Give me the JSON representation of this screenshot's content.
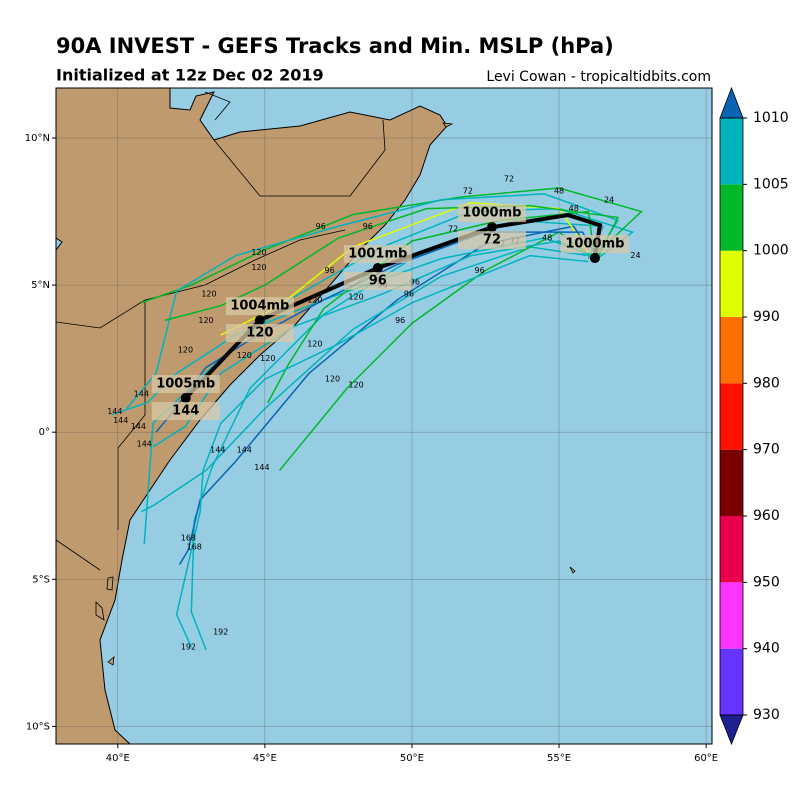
{
  "header": {
    "title": "90A INVEST - GEFS Tracks and Min. MSLP (hPa)",
    "subtitle": "Initialized at 12z Dec 02 2019",
    "credit": "Levi Cowan - tropicaltidbits.com"
  },
  "map": {
    "xlim": [
      37.9,
      60.2
    ],
    "ylim": [
      -10.6,
      11.7
    ],
    "xticks": [
      {
        "value": 40,
        "label": "40°E"
      },
      {
        "value": 45,
        "label": "45°E"
      },
      {
        "value": 50,
        "label": "50°E"
      },
      {
        "value": 55,
        "label": "55°E"
      },
      {
        "value": 60,
        "label": "60°E"
      }
    ],
    "yticks": [
      {
        "value": 10,
        "label": "10°N"
      },
      {
        "value": 5,
        "label": "5°N"
      },
      {
        "value": 0,
        "label": "0°"
      },
      {
        "value": -5,
        "label": "5°S"
      },
      {
        "value": -10,
        "label": "10°S"
      }
    ],
    "members": [
      {
        "color": "#00b4be",
        "lon": [
          56.3,
          57.5,
          55,
          52,
          49,
          46,
          43.5,
          41.2,
          40.9
        ],
        "lat": [
          5.9,
          6.8,
          7.6,
          7.5,
          6.3,
          4.6,
          2.5,
          0.3,
          -3.8
        ]
      },
      {
        "color": "#00b828",
        "lon": [
          56.2,
          57.8,
          55,
          51.7,
          48,
          45,
          42.5,
          40.8
        ],
        "lat": [
          6.0,
          7.5,
          8.3,
          8.0,
          7.4,
          6.2,
          5.0,
          4.4
        ]
      },
      {
        "color": "#00b4be",
        "lon": [
          56.2,
          57,
          54.5,
          51,
          47.5,
          44,
          42,
          41.3,
          40.3
        ],
        "lat": [
          5.9,
          7.2,
          8.1,
          7.9,
          7.0,
          6.0,
          4.8,
          2.0,
          0.8
        ]
      },
      {
        "color": "#00b4be",
        "lon": [
          56,
          56.5,
          53.5,
          50,
          47,
          44.5,
          43.2,
          42.6,
          42.5,
          43.0
        ],
        "lat": [
          5.9,
          7.0,
          7.2,
          5.9,
          4.0,
          1.5,
          -1.2,
          -3,
          -6.1,
          -7.4
        ]
      },
      {
        "color": "#0a64b4",
        "lon": [
          56.1,
          55.5,
          52.5,
          49.5,
          46.5,
          44,
          42.8,
          42.4,
          42.1
        ],
        "lat": [
          6,
          7.0,
          6.4,
          4.5,
          2.0,
          -1,
          -2.3,
          -4,
          -4.5
        ]
      },
      {
        "color": "#00b4be",
        "lon": [
          56,
          54,
          51,
          48,
          45,
          43,
          41.2,
          40.8
        ],
        "lat": [
          6,
          6.3,
          5.3,
          3.5,
          0.8,
          -1.3,
          -2.5,
          -2.7
        ]
      },
      {
        "color": "#00b828",
        "lon": [
          56.2,
          55,
          52.5,
          50,
          47.8,
          45.5
        ],
        "lat": [
          5.9,
          6.8,
          5.5,
          3.7,
          1.5,
          -1.3
        ]
      },
      {
        "color": "#e0ff00",
        "lon": [
          56.1,
          55,
          52,
          48,
          45.5,
          43.5
        ],
        "lat": [
          6,
          7.6,
          7.8,
          6.3,
          4.3,
          3.3
        ]
      },
      {
        "color": "#00b4be",
        "lon": [
          56.2,
          54.5,
          51,
          47,
          44,
          42,
          41,
          39.8
        ],
        "lat": [
          6,
          6.6,
          5.9,
          4.5,
          3.3,
          2.0,
          1.0,
          0.6
        ]
      },
      {
        "color": "#00b828",
        "lon": [
          56.2,
          56,
          53,
          50,
          47,
          45.8,
          45.1
        ],
        "lat": [
          6,
          7.5,
          7.2,
          6.5,
          4.2,
          2.3,
          1.0
        ]
      },
      {
        "color": "#0a64b4",
        "lon": [
          56.3,
          55.8,
          52.5,
          49.5,
          47,
          44.6,
          43,
          41.8,
          41.3
        ],
        "lat": [
          5.9,
          6.8,
          6.8,
          5.7,
          4.5,
          3.2,
          2.2,
          0.6,
          0.0
        ]
      },
      {
        "color": "#00b4be",
        "lon": [
          56.2,
          55,
          52,
          49,
          46,
          43.5,
          42.3,
          41.2
        ],
        "lat": [
          5.9,
          6.5,
          6.0,
          4.7,
          3.6,
          2.0,
          0.2,
          -0.5
        ]
      },
      {
        "color": "#00b828",
        "lon": [
          56.3,
          57,
          54,
          50.5,
          47.5,
          45,
          43.5,
          41.6
        ],
        "lat": [
          5.9,
          7.3,
          7.7,
          7.6,
          6.6,
          5.0,
          4.3,
          3.8
        ]
      },
      {
        "color": "#00b4be",
        "lon": [
          56,
          54,
          50,
          47.5,
          45,
          43.5,
          42.9,
          42.8,
          42,
          42.5
        ],
        "lat": [
          5.8,
          6.0,
          4.4,
          3.0,
          1.8,
          0.3,
          -1.3,
          -2.7,
          -6.2,
          -7.3
        ]
      }
    ],
    "hour_labels": [
      {
        "text": "24",
        "lon": 57.6,
        "lat": 6.0
      },
      {
        "text": "24",
        "lon": 56.7,
        "lat": 7.9
      },
      {
        "text": "48",
        "lon": 55,
        "lat": 8.2
      },
      {
        "text": "48",
        "lon": 55.5,
        "lat": 7.6
      },
      {
        "text": "48",
        "lon": 54.6,
        "lat": 6.6
      },
      {
        "text": "72",
        "lon": 51.9,
        "lat": 8.2
      },
      {
        "text": "72",
        "lon": 53.3,
        "lat": 8.6
      },
      {
        "text": "72",
        "lon": 51.4,
        "lat": 6.9
      },
      {
        "text": "72",
        "lon": 53,
        "lat": 6.4
      },
      {
        "text": "72",
        "lon": 53.5,
        "lat": 6.5
      },
      {
        "text": "96",
        "lon": 46.9,
        "lat": 7.0
      },
      {
        "text": "96",
        "lon": 47.2,
        "lat": 5.5
      },
      {
        "text": "96",
        "lon": 48.5,
        "lat": 7.0
      },
      {
        "text": "96",
        "lon": 49,
        "lat": 5.0
      },
      {
        "text": "96",
        "lon": 49.9,
        "lat": 4.7
      },
      {
        "text": "96",
        "lon": 50.1,
        "lat": 5.1
      },
      {
        "text": "96",
        "lon": 52.3,
        "lat": 5.5
      },
      {
        "text": "96",
        "lon": 49.6,
        "lat": 3.8
      },
      {
        "text": "120",
        "lon": 44.8,
        "lat": 6.1
      },
      {
        "text": "120",
        "lon": 44.8,
        "lat": 5.6
      },
      {
        "text": "120",
        "lon": 43.1,
        "lat": 4.7
      },
      {
        "text": "120",
        "lon": 43,
        "lat": 3.8
      },
      {
        "text": "120",
        "lon": 46.7,
        "lat": 4.5
      },
      {
        "text": "120",
        "lon": 48.1,
        "lat": 4.6
      },
      {
        "text": "120",
        "lon": 46.7,
        "lat": 3.0
      },
      {
        "text": "120",
        "lon": 45.1,
        "lat": 2.5
      },
      {
        "text": "120",
        "lon": 44.3,
        "lat": 2.6
      },
      {
        "text": "120",
        "lon": 42.3,
        "lat": 2.8
      },
      {
        "text": "120",
        "lon": 47.3,
        "lat": 1.8
      },
      {
        "text": "120",
        "lon": 48.1,
        "lat": 1.6
      },
      {
        "text": "144",
        "lon": 40.8,
        "lat": 1.3
      },
      {
        "text": "144",
        "lon": 39.9,
        "lat": 0.7
      },
      {
        "text": "144",
        "lon": 40.1,
        "lat": 0.4
      },
      {
        "text": "144",
        "lon": 40.7,
        "lat": 0.2
      },
      {
        "text": "144",
        "lon": 40.9,
        "lat": -0.4
      },
      {
        "text": "144",
        "lon": 44.3,
        "lat": -0.6
      },
      {
        "text": "144",
        "lon": 43.4,
        "lat": -0.6
      },
      {
        "text": "144",
        "lon": 44.9,
        "lat": -1.2
      },
      {
        "text": "168",
        "lon": 42.4,
        "lat": -3.6
      },
      {
        "text": "168",
        "lon": 42.6,
        "lat": -3.9
      },
      {
        "text": "192",
        "lon": 42.4,
        "lat": -7.3
      },
      {
        "text": "192",
        "lon": 43.5,
        "lat": -6.8
      }
    ],
    "mean_track": {
      "lon": [
        42.31,
        44.83,
        48.84,
        52.72,
        55.31,
        56.39,
        56.22
      ],
      "lat": [
        1.16,
        3.81,
        5.58,
        6.97,
        7.38,
        7.04,
        5.92
      ],
      "hour_labels": [
        "144",
        "120",
        "96",
        "72",
        null,
        null,
        null
      ],
      "pressure_labels": [
        "1005mb",
        "1004mb",
        "1001mb",
        "1000mb",
        null,
        null,
        "1000mb"
      ]
    }
  },
  "colorbar": {
    "ticks": [
      930,
      940,
      950,
      960,
      970,
      980,
      990,
      1000,
      1005,
      1010
    ],
    "colors": [
      "#6633ff",
      "#ff33ff",
      "#e8004f",
      "#7a0000",
      "#ff1100",
      "#ff7000",
      "#e0ff00",
      "#00b828",
      "#00b4be"
    ],
    "under_color": "#1c2090",
    "over_color": "#0a64b4"
  }
}
